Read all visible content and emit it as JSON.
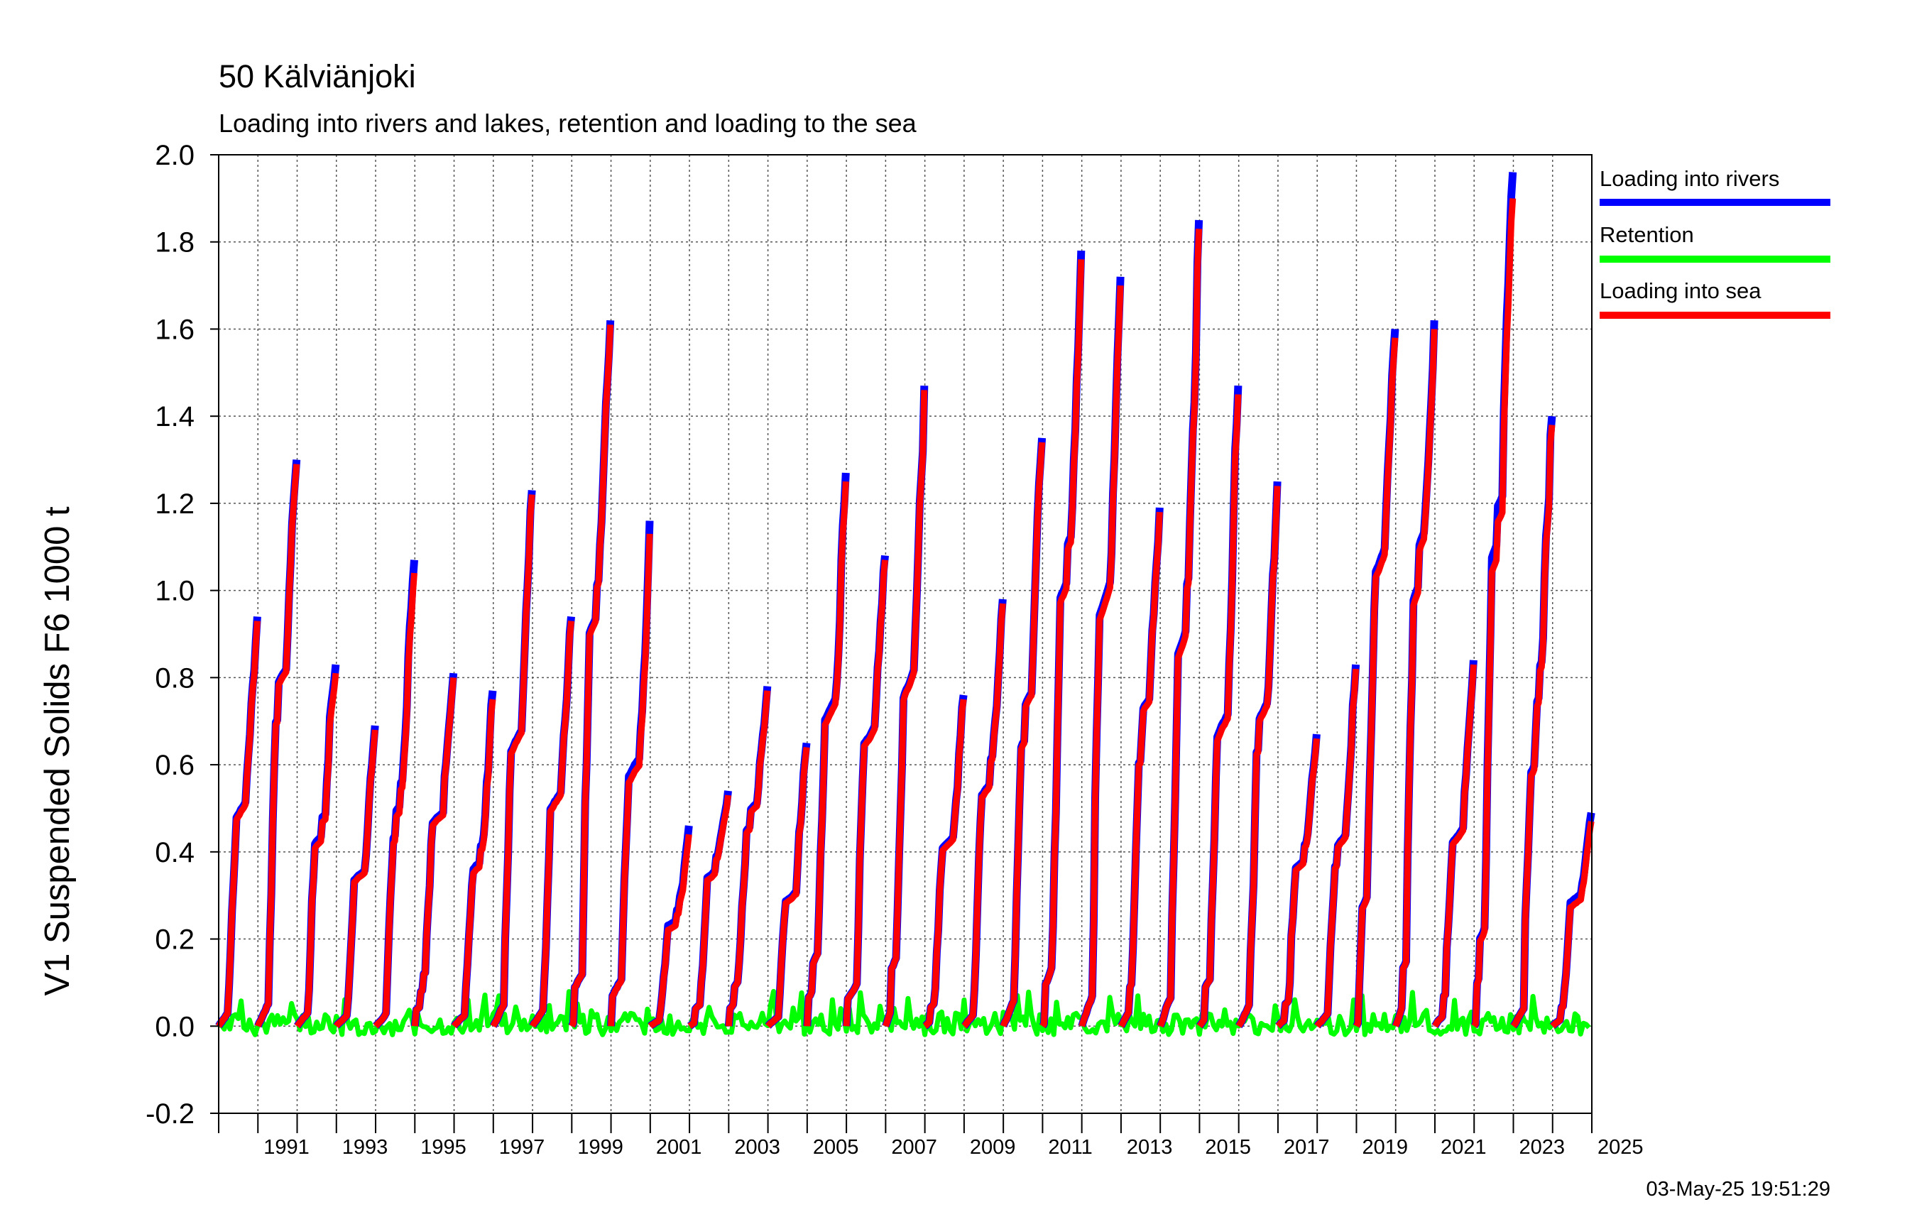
{
  "chart_data": {
    "type": "line",
    "title": "50 Kälviänjoki",
    "subtitle": "Loading into rivers and lakes, retention and loading to the sea",
    "ylabel": "V1 Suspended Solids F6 1000 t",
    "xlabel": "",
    "ylim": [
      -0.2,
      2.0
    ],
    "xlim": [
      1990.0,
      2025.0
    ],
    "yticks": [
      "2.0",
      "1.8",
      "1.6",
      "1.4",
      "1.2",
      "1.0",
      "0.8",
      "0.6",
      "0.4",
      "0.2",
      "0.0",
      "-0.2"
    ],
    "xticks": [
      "1991",
      "1993",
      "1995",
      "1997",
      "1999",
      "2001",
      "2003",
      "2005",
      "2007",
      "2009",
      "2011",
      "2013",
      "2015",
      "2017",
      "2019",
      "2021",
      "2023",
      "2025"
    ],
    "grid": true,
    "legend_position": "right",
    "timestamp": "03-May-25 19:51:29",
    "annual_totals": {
      "years": [
        1990,
        1991,
        1992,
        1993,
        1994,
        1995,
        1996,
        1997,
        1998,
        1999,
        2000,
        2001,
        2002,
        2003,
        2004,
        2005,
        2006,
        2007,
        2008,
        2009,
        2010,
        2011,
        2012,
        2013,
        2014,
        2015,
        2016,
        2017,
        2018,
        2019,
        2020,
        2021,
        2022,
        2023,
        2024
      ],
      "loading_into_rivers": [
        0.94,
        1.3,
        0.83,
        0.69,
        1.07,
        0.81,
        0.77,
        1.23,
        0.94,
        1.62,
        1.16,
        0.46,
        0.54,
        0.78,
        0.65,
        1.27,
        1.08,
        1.47,
        0.76,
        0.98,
        1.35,
        1.78,
        1.72,
        1.19,
        1.85,
        1.47,
        1.25,
        0.67,
        0.83,
        1.6,
        1.62,
        0.84,
        1.96,
        1.4,
        0.49
      ],
      "loading_into_sea": [
        0.93,
        1.29,
        0.81,
        0.68,
        1.04,
        0.8,
        0.75,
        1.22,
        0.93,
        1.61,
        1.13,
        0.44,
        0.53,
        0.77,
        0.64,
        1.25,
        1.07,
        1.46,
        0.75,
        0.97,
        1.34,
        1.76,
        1.7,
        1.18,
        1.83,
        1.45,
        1.24,
        0.66,
        0.82,
        1.58,
        1.6,
        0.83,
        1.9,
        1.38,
        0.47
      ]
    },
    "series": [
      {
        "name": "Loading into rivers",
        "color": "#0000ff"
      },
      {
        "name": "Retention",
        "color": "#00ff00"
      },
      {
        "name": "Loading into sea",
        "color": "#ff0000"
      }
    ]
  }
}
